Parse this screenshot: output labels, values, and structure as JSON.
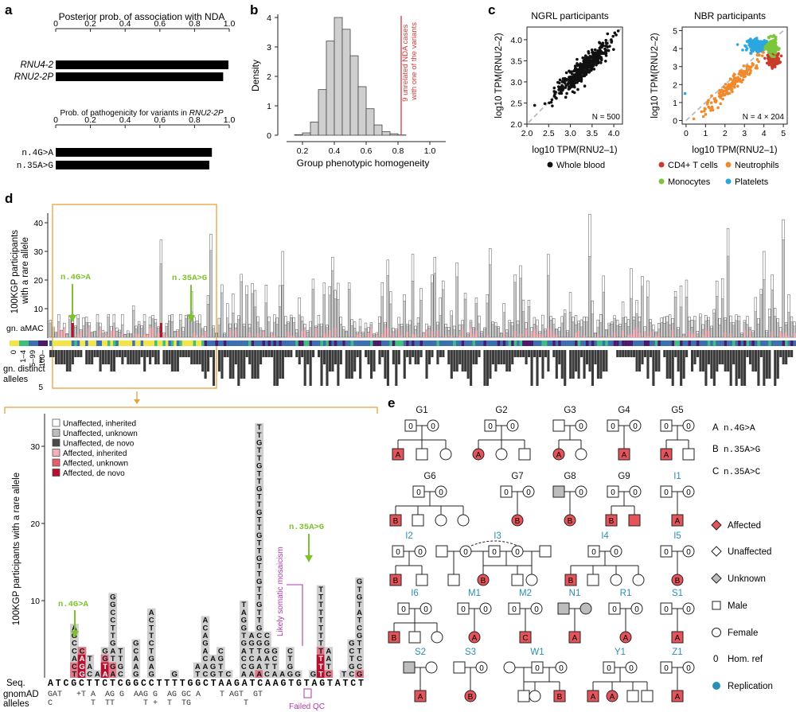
{
  "panels": {
    "a": {
      "letter": "a",
      "chart_title": "Posterior prob. of association with NDA",
      "genes": [
        "RNU4-2",
        "RNU2-2P"
      ],
      "posterior": [
        0.995,
        0.965
      ],
      "sub_title_prefix": "Prob. of pathogenicity for variants in ",
      "sub_title_gene": "RNU2-2P",
      "variants": [
        "n.4G>A",
        "n.35A>G"
      ],
      "variant_prob": [
        0.9,
        0.885
      ],
      "ticks": [
        "0",
        "0.2",
        "0.4",
        "0.6",
        "0.8",
        "1.0"
      ]
    },
    "b": {
      "letter": "b",
      "ylabel": "Density",
      "xlabel": "Group phenotypic homogeneity",
      "annotation_line1": "9 unrelated NDA cases",
      "annotation_line2": "with one of the variants",
      "yticks": [
        "0",
        "1",
        "2",
        "3",
        "4"
      ],
      "xticks": [
        "0.2",
        "0.4",
        "0.6",
        "0.8",
        "1.0"
      ]
    },
    "c": {
      "letter": "c",
      "left_title": "NGRL participants",
      "right_title": "NBR participants",
      "left_n": "N = 500",
      "right_n": "N = 4 × 204",
      "ylabel": "log10 TPM(RNU2–2)",
      "xlabel": "log10 TPM(RNU2–1)",
      "left_xticks": [
        "2.0",
        "2.5",
        "3.0",
        "3.5",
        "4.0"
      ],
      "left_yticks": [
        "2.0",
        "2.5",
        "3.0",
        "3.5",
        "4.0"
      ],
      "right_xticks": [
        "0",
        "1",
        "2",
        "3",
        "4",
        "5"
      ],
      "right_yticks": [
        "0",
        "1",
        "2",
        "3",
        "4",
        "5"
      ],
      "legend_left": "Whole blood",
      "legend_right": [
        "CD4+ T cells",
        "Neutrophils",
        "Monocytes",
        "Platelets"
      ]
    },
    "d": {
      "letter": "d",
      "ylabel_top_line1": "100KGP participants",
      "ylabel_top_line2": "with a rare allele",
      "yticks_top": [
        "10",
        "20",
        "30",
        "40"
      ],
      "maf_label": "gn. aMAC",
      "maf_bins": [
        "0",
        "1–4",
        "5–99",
        "100–"
      ],
      "distinct_label_line1": "gn. distinct",
      "distinct_label_line2": "alleles",
      "distinct_ticks": [
        "1",
        "5"
      ],
      "annot1": "n.4G>A",
      "annot2": "n.35A>G",
      "zoom_ylabel": "100KGP participants with a rare allele",
      "zoom_yticks": [
        "10",
        "20",
        "30"
      ],
      "legend": [
        "Unaffected, inherited",
        "Unaffected, unknown",
        "Unaffected, de novo",
        "Affected, inherited",
        "Affected, unknown",
        "Affected, de novo"
      ],
      "seq_label": "Seq.",
      "sequence": "ATCGCTTCTCGGCCTTTTGGCTAAGATCAAGTGTAGTATCT",
      "gnomad_label_line1": "gnomAD",
      "gnomad_label_line2": "alleles",
      "gnomad_row1": "GAT   +T A  AG G  AAG G  AG GC A    T AGT  GT",
      "gnomad_row2": "C        T  TT      T +  T  TG           T",
      "mosaic_label": "Likely somatic mosaicism",
      "failed_qc": "Failed QC"
    },
    "e": {
      "letter": "e",
      "families": [
        "G1",
        "G2",
        "G3",
        "G4",
        "G5",
        "G6",
        "G7",
        "G8",
        "G9",
        "I1",
        "I2",
        "I3",
        "I4",
        "I5",
        "I6",
        "M1",
        "M2",
        "N1",
        "R1",
        "S1",
        "S2",
        "S3",
        "W1",
        "Y1",
        "Z1"
      ],
      "variant_key": [
        {
          "code": "A",
          "name": "n.4G>A"
        },
        {
          "code": "B",
          "name": "n.35A>G"
        },
        {
          "code": "C",
          "name": "n.35A>C"
        }
      ],
      "legend": [
        "Affected",
        "Unaffected",
        "Unknown",
        "Male",
        "Female",
        "Hom. ref",
        "Replication"
      ],
      "homref_symbol": "0"
    }
  },
  "colors": {
    "affected": "#e5545a",
    "affected_dark": "#b5112e",
    "affected_pink": "#f08c9b",
    "unknown_gray": "#bdbdbd",
    "dark_gray": "#3a3a3a",
    "orange_box": "#e8a23a",
    "arrow_green": "#7dc22b",
    "replication_blue": "#2a8fb4",
    "cd4": "#c83a2b",
    "neutrophil": "#f08a2b",
    "monocyte": "#7bc63a",
    "platelet": "#2ca6e0",
    "vline": "#d13b3b",
    "mosaic": "#b03aa8"
  },
  "chart_data": [
    {
      "type": "bar",
      "panel": "a",
      "title": "Posterior prob. of association with NDA",
      "categories": [
        "RNU4-2",
        "RNU2-2P"
      ],
      "values": [
        0.995,
        0.965
      ],
      "xlim": [
        0,
        1
      ]
    },
    {
      "type": "bar",
      "panel": "a",
      "title": "Prob. of pathogenicity for variants in RNU2-2P",
      "categories": [
        "n.4G>A",
        "n.35A>G"
      ],
      "values": [
        0.9,
        0.885
      ],
      "xlim": [
        0,
        1
      ]
    },
    {
      "type": "bar",
      "panel": "b",
      "xlabel": "Group phenotypic homogeneity",
      "ylabel": "Density",
      "x": [
        0.175,
        0.225,
        0.275,
        0.325,
        0.375,
        0.425,
        0.475,
        0.525,
        0.575,
        0.625,
        0.675,
        0.725,
        0.775,
        0.825
      ],
      "values": [
        0.02,
        0.08,
        0.45,
        1.55,
        3.2,
        4.0,
        3.6,
        2.7,
        1.65,
        0.9,
        0.35,
        0.12,
        0.05,
        0.01
      ],
      "vline": 0.82,
      "xlim": [
        0.1,
        1.1
      ],
      "ylim": [
        0,
        4
      ]
    },
    {
      "type": "scatter",
      "panel": "c-left",
      "title": "NGRL participants",
      "xlabel": "log10 TPM(RNU2–1)",
      "ylabel": "log10 TPM(RNU2–2)",
      "xlim": [
        2.0,
        4.2
      ],
      "ylim": [
        2.0,
        4.3
      ],
      "cloud_center": [
        3.3,
        3.3
      ],
      "n": 500
    },
    {
      "type": "scatter",
      "panel": "c-right",
      "title": "NBR participants",
      "xlabel": "log10 TPM(RNU2–1)",
      "ylabel": "log10 TPM(RNU2–2)",
      "xlim": [
        -0.2,
        5.2
      ],
      "ylim": [
        -0.2,
        5.2
      ],
      "series": [
        {
          "name": "CD4+ T cells",
          "center": [
            3.7,
            4.2
          ]
        },
        {
          "name": "Neutrophils",
          "center": [
            4.4,
            4.1
          ]
        },
        {
          "name": "Monocytes",
          "center": [
            4.5,
            3.4
          ]
        },
        {
          "name": "Platelets",
          "center": [
            2.4,
            2.0
          ]
        }
      ]
    }
  ]
}
